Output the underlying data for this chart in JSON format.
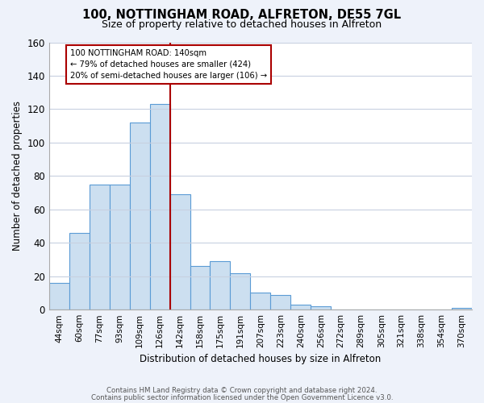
{
  "title": "100, NOTTINGHAM ROAD, ALFRETON, DE55 7GL",
  "subtitle": "Size of property relative to detached houses in Alfreton",
  "xlabel": "Distribution of detached houses by size in Alfreton",
  "ylabel": "Number of detached properties",
  "bar_labels": [
    "44sqm",
    "60sqm",
    "77sqm",
    "93sqm",
    "109sqm",
    "126sqm",
    "142sqm",
    "158sqm",
    "175sqm",
    "191sqm",
    "207sqm",
    "223sqm",
    "240sqm",
    "256sqm",
    "272sqm",
    "289sqm",
    "305sqm",
    "321sqm",
    "338sqm",
    "354sqm",
    "370sqm"
  ],
  "bar_values": [
    16,
    46,
    75,
    75,
    112,
    123,
    69,
    26,
    29,
    22,
    10,
    9,
    3,
    2,
    0,
    0,
    0,
    0,
    0,
    0,
    1
  ],
  "bar_color": "#ccdff0",
  "bar_edge_color": "#5b9bd5",
  "vline_x": 6,
  "vline_color": "#aa0000",
  "annotation_title": "100 NOTTINGHAM ROAD: 140sqm",
  "annotation_line1": "← 79% of detached houses are smaller (424)",
  "annotation_line2": "20% of semi-detached houses are larger (106) →",
  "annotation_box_color": "#ffffff",
  "annotation_box_edge": "#aa0000",
  "ylim": [
    0,
    160
  ],
  "yticks": [
    0,
    20,
    40,
    60,
    80,
    100,
    120,
    140,
    160
  ],
  "footer_line1": "Contains HM Land Registry data © Crown copyright and database right 2024.",
  "footer_line2": "Contains public sector information licensed under the Open Government Licence v3.0.",
  "bg_color": "#eef2fa",
  "plot_bg_color": "#ffffff",
  "grid_color": "#c8d0e0"
}
